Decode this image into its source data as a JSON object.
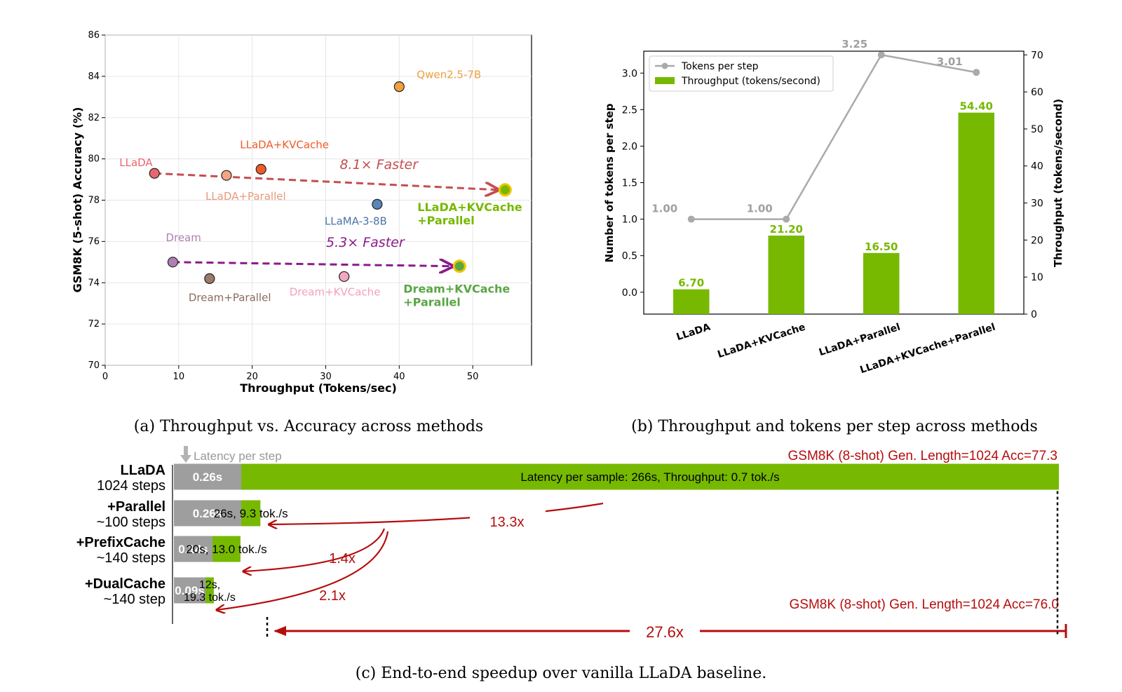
{
  "colors": {
    "green": "#76b900",
    "gray": "#9e9e9e",
    "dark_red": "#b50d0d",
    "red_dashed": "#c44e52",
    "purple": "#8b1a8b",
    "green_label": "#76b900",
    "green_label_dream": "#5aa645",
    "gold_edge": "#f2c400"
  },
  "captions": {
    "a": "(a) Throughput vs. Accuracy across methods",
    "b": "(b) Throughput and tokens per step across methods",
    "c": "(c) End-to-end speedup over vanilla LLaDA baseline."
  },
  "chart_data": [
    {
      "id": "a",
      "type": "scatter",
      "xlabel": "Throughput (Tokens/sec)",
      "ylabel": "GSM8K (5-shot) Accuracy (%)",
      "xlim": [
        0,
        58
      ],
      "ylim": [
        70,
        86
      ],
      "xticks": [
        0,
        10,
        20,
        30,
        40,
        50
      ],
      "yticks": [
        70,
        72,
        74,
        76,
        78,
        80,
        82,
        84,
        86
      ],
      "points": [
        {
          "label": "LLaDA",
          "x": 6.7,
          "y": 79.3,
          "color": "#e8676e",
          "label_color": "#e8676e"
        },
        {
          "label": "LLaDA+Parallel",
          "x": 16.5,
          "y": 79.2,
          "color": "#f4a582",
          "label_color": "#e89a7a"
        },
        {
          "label": "LLaDA+KVCache",
          "x": 21.2,
          "y": 79.5,
          "color": "#f05a28",
          "label_color": "#f05a28"
        },
        {
          "label": "Qwen2.5-7B",
          "x": 40.0,
          "y": 83.5,
          "color": "#f0a040",
          "label_color": "#f0a040"
        },
        {
          "label": "LLaMA-3-8B",
          "x": 37.0,
          "y": 77.8,
          "color": "#5a86b8",
          "label_color": "#4a74a8"
        },
        {
          "label": "LLaDA+KVCache\n+Parallel",
          "x": 54.4,
          "y": 78.5,
          "color": "#76b900",
          "label_color": "#76b900",
          "highlight": true
        },
        {
          "label": "Dream",
          "x": 9.2,
          "y": 75.0,
          "color": "#b07fb0",
          "label_color": "#b07fb0"
        },
        {
          "label": "Dream+Parallel",
          "x": 14.2,
          "y": 74.2,
          "color": "#9c7b6b",
          "label_color": "#8c6b5b"
        },
        {
          "label": "Dream+KVCache",
          "x": 32.5,
          "y": 74.3,
          "color": "#f4a8bf",
          "label_color": "#f4a0b8"
        },
        {
          "label": "Dream+KVCache\n+Parallel",
          "x": 48.2,
          "y": 74.8,
          "color": "#5aa645",
          "label_color": "#5aa645",
          "highlight": true
        }
      ],
      "annotations": [
        {
          "text": "8.1× Faster",
          "from": [
            6.7,
            79.3
          ],
          "to": [
            54.4,
            78.5
          ],
          "color": "#c44e52"
        },
        {
          "text": "5.3× Faster",
          "from": [
            9.2,
            75.0
          ],
          "to": [
            48.2,
            74.8
          ],
          "color": "#8b1a8b"
        }
      ]
    },
    {
      "id": "b",
      "type": "bar",
      "categories": [
        "LLaDA",
        "LLaDA+KVCache",
        "LLaDA+Parallel",
        "LLaDA+KVCache+Parallel"
      ],
      "ylabel_left": "Number of tokens per step",
      "ylabel_right": "Throughput (tokens/second)",
      "ylim_left": [
        -0.3,
        3.3
      ],
      "ylim_right": [
        0,
        71
      ],
      "yticks_left": [
        0.0,
        0.5,
        1.0,
        1.5,
        2.0,
        2.5,
        3.0
      ],
      "yticks_right": [
        0,
        10,
        20,
        30,
        40,
        50,
        60,
        70
      ],
      "series": [
        {
          "name": "Tokens per step",
          "kind": "line",
          "axis": "left",
          "values": [
            1.0,
            1.0,
            3.25,
            3.01
          ],
          "labels": [
            "1.00",
            "1.00",
            "3.25",
            "3.01"
          ]
        },
        {
          "name": "Throughput (tokens/second)",
          "kind": "bar",
          "axis": "right",
          "values": [
            6.7,
            21.2,
            16.5,
            54.4
          ],
          "labels": [
            "6.70",
            "21.20",
            "16.50",
            "54.40"
          ]
        }
      ]
    },
    {
      "id": "c",
      "type": "bar",
      "orientation": "horizontal",
      "legend_text": "Latency per step",
      "acc_top": "GSM8K (8-shot) Gen. Length=1024 Acc=77.3",
      "acc_bottom": "GSM8K (8-shot) Gen. Length=1024 Acc=76.0",
      "rows": [
        {
          "name": "LLaDA",
          "steps": "1024 steps",
          "step_latency": "0.26s",
          "latency_s": 266,
          "text": "Latency per sample: 266s, Throughput: 0.7 tok./s"
        },
        {
          "name": "+Parallel",
          "steps": "~100 steps",
          "step_latency": "0.26s",
          "latency_s": 26,
          "text": "26s, 9.3 tok./s"
        },
        {
          "name": "+PrefixCache",
          "steps": "~140 steps",
          "step_latency": "0.14s",
          "latency_s": 20,
          "text": "20s, 13.0 tok./s"
        },
        {
          "name": "+DualCache",
          "steps": "~140 step",
          "step_latency": "0.09s",
          "latency_s": 12,
          "text_line1": "12s,",
          "text_line2": "19.3 tok./s"
        }
      ],
      "speedups": {
        "parallel": "13.3x",
        "prefix": "1.4x",
        "dual": "2.1x",
        "total": "27.6x"
      }
    }
  ]
}
